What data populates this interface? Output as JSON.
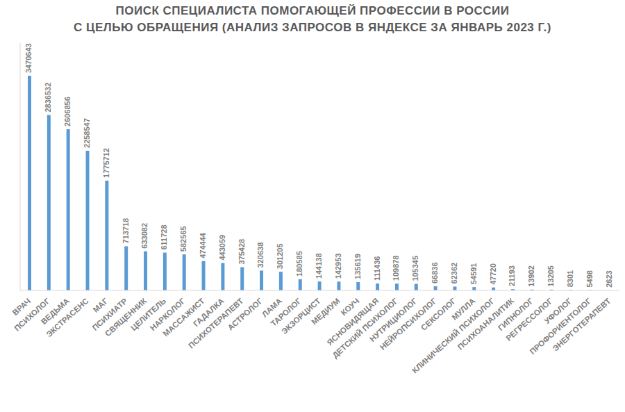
{
  "chart_data": {
    "type": "bar",
    "title": "ПОИСК СПЕЦИАЛИСТА ПОМОГАЮЩЕЙ ПРОФЕССИИ В РОССИИ\nС ЦЕЛЬЮ ОБРАЩЕНИЯ (АНАЛИЗ ЗАПРОСОВ В ЯНДЕКСЕ ЗА ЯНВАРЬ 2023 Г.)",
    "categories": [
      "ВРАЧ",
      "ПСИХОЛОГ",
      "ВЕДЬМА",
      "ЭКСТРАСЕНС",
      "МАГ",
      "ПСИХИАТР",
      "СВЯЩЕННИК",
      "ЦЕЛИТЕЛЬ",
      "НАРКОЛОГ",
      "МАССАЖИСТ",
      "ГАДАЛКА",
      "ПСИХОТЕРАПЕВТ",
      "АСТРОЛОГ",
      "ЛАМА",
      "ТАРОЛОГ",
      "ЭКЗОРЦИСТ",
      "МЕДИУМ",
      "КОУЧ",
      "ЯСНОВИДЯЩАЯ",
      "ДЕТСКИЙ ПСИХОЛОГ",
      "НУТРИЦИОЛОГ",
      "НЕЙРОПСИХОЛОГ",
      "СЕКСОЛОГ",
      "МУЛЛА",
      "КЛИНИЧЕСКИЙ ПСИХОЛОГ",
      "ПСИХОАНАЛИТИК",
      "ГИПНОЛОГ",
      "РЕГРЕССОЛОГ",
      "УФОЛОГ",
      "ПРОФОРИЕНТОЛОГ",
      "ЭНЕРГОТЕРАПЕВТ"
    ],
    "values": [
      3470643,
      2836532,
      2606856,
      2258547,
      1775712,
      713718,
      633082,
      611728,
      582565,
      474444,
      443059,
      375428,
      320638,
      301205,
      180585,
      144138,
      142953,
      135619,
      111436,
      109878,
      105345,
      66836,
      62362,
      54591,
      47720,
      21193,
      13902,
      13205,
      8301,
      5498,
      2623
    ],
    "color": "#5b9bd5",
    "ylim": [
      0,
      4000000
    ],
    "data_labels": true,
    "tick_labels": "x",
    "grid": false
  }
}
